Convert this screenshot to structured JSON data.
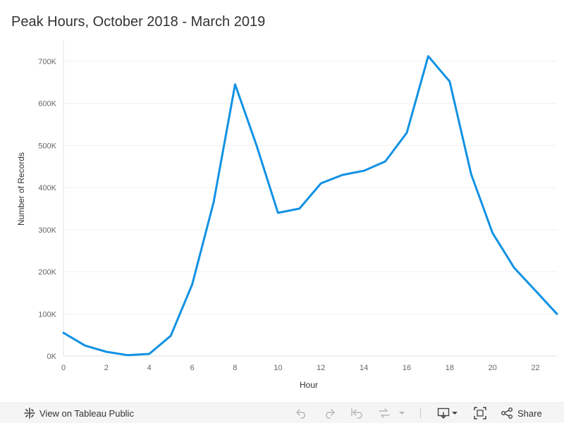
{
  "page": {
    "title": "Peak Hours, October 2018 - March 2019"
  },
  "chart_data": {
    "type": "line",
    "title": "Peak Hours, October 2018 - March 2019",
    "xlabel": "Hour",
    "ylabel": "Number of Records",
    "xlim": [
      0,
      23
    ],
    "ylim": [
      0,
      750000
    ],
    "x_ticks": [
      0,
      2,
      4,
      6,
      8,
      10,
      12,
      14,
      16,
      18,
      20,
      22
    ],
    "y_ticks": [
      0,
      100000,
      200000,
      300000,
      400000,
      500000,
      600000,
      700000
    ],
    "y_tick_labels": [
      "0K",
      "100K",
      "200K",
      "300K",
      "400K",
      "500K",
      "600K",
      "700K"
    ],
    "grid": "horizontal",
    "line_color": "#1192e3",
    "x": [
      0,
      1,
      2,
      3,
      4,
      5,
      6,
      7,
      8,
      9,
      10,
      11,
      12,
      13,
      14,
      15,
      16,
      17,
      18,
      19,
      20,
      21,
      22,
      23
    ],
    "values": [
      55000,
      25000,
      10000,
      2000,
      5000,
      48000,
      170000,
      365000,
      645000,
      500000,
      340000,
      350000,
      410000,
      430000,
      440000,
      462000,
      530000,
      712000,
      652000,
      432000,
      292000,
      210000,
      155000,
      100000
    ]
  },
  "toolbar": {
    "view_label": "View on Tableau Public",
    "share_label": "Share",
    "icons": {
      "view": "tableau-logo-icon",
      "undo": "undo-icon",
      "redo": "redo-icon",
      "revert": "revert-icon",
      "refresh": "refresh-icon",
      "more": "chevron-down-icon",
      "download": "download-icon",
      "fullscreen": "fullscreen-icon",
      "share": "share-icon"
    }
  }
}
